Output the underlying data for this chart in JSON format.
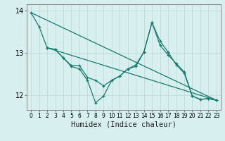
{
  "title": "",
  "xlabel": "Humidex (Indice chaleur)",
  "ylabel": "",
  "background_color": "#d7efef",
  "grid_color": "#c2dada",
  "line_color": "#1a7a6e",
  "ylim": [
    11.65,
    14.15
  ],
  "xlim": [
    -0.5,
    23.5
  ],
  "yticks": [
    12,
    13,
    14
  ],
  "xticks": [
    0,
    1,
    2,
    3,
    4,
    5,
    6,
    7,
    8,
    9,
    10,
    11,
    12,
    13,
    14,
    15,
    16,
    17,
    18,
    19,
    20,
    21,
    22,
    23
  ],
  "series": [
    {
      "x": [
        0,
        1,
        2,
        3,
        4,
        5,
        6,
        7,
        8,
        9,
        10,
        11,
        12,
        13,
        14,
        15,
        16,
        17,
        18,
        19,
        20,
        21,
        22,
        23
      ],
      "y": [
        13.95,
        13.62,
        13.12,
        13.08,
        12.88,
        12.68,
        12.62,
        12.35,
        11.82,
        11.98,
        12.35,
        12.45,
        12.62,
        12.68,
        13.02,
        13.72,
        13.28,
        13.02,
        12.72,
        12.52,
        11.98,
        11.9,
        11.92,
        11.88
      ],
      "with_marker": true
    },
    {
      "x": [
        2,
        3,
        4,
        5,
        6,
        7,
        8,
        9,
        10,
        11,
        12,
        13,
        14,
        15,
        16,
        17,
        18,
        19,
        20,
        21,
        22,
        23
      ],
      "y": [
        13.12,
        13.08,
        12.88,
        12.7,
        12.7,
        12.42,
        12.35,
        12.22,
        12.35,
        12.45,
        12.62,
        12.72,
        13.02,
        13.72,
        13.18,
        12.95,
        12.75,
        12.55,
        11.98,
        11.9,
        11.92,
        11.88
      ],
      "with_marker": true
    },
    {
      "x": [
        0,
        23
      ],
      "y": [
        13.95,
        11.88
      ],
      "with_marker": false
    },
    {
      "x": [
        2,
        23
      ],
      "y": [
        13.12,
        11.88
      ],
      "with_marker": false
    }
  ]
}
